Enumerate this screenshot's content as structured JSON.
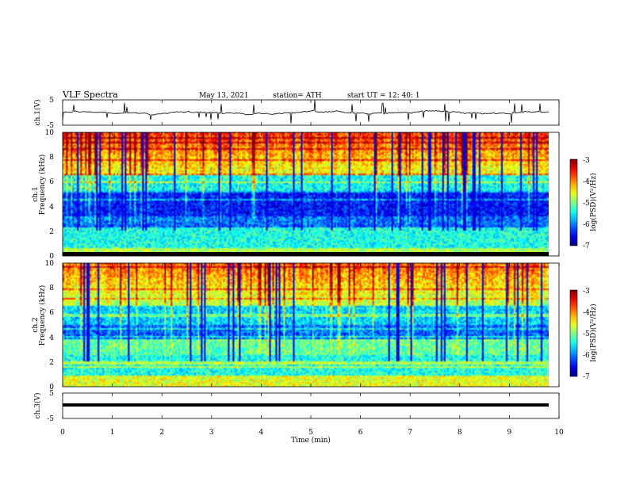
{
  "header": {
    "title": "VLF  Spectra",
    "date": "May 13, 2021",
    "station": "station= ATH",
    "start": "start  UT  =   12: 40: 1"
  },
  "chart_data": [
    {
      "type": "line",
      "name": "ch1-waveform",
      "ylabel": "ch.1(V)",
      "y_ticks": [
        "5",
        "-5"
      ],
      "ylim": [
        -5,
        5
      ],
      "x_range_min": [
        0,
        9.8
      ],
      "approx_level_V": 0,
      "color": "#000000"
    },
    {
      "type": "heatmap",
      "name": "ch1-spectrogram",
      "ylabel_1": "ch.1",
      "ylabel_2": "Frequency (kHz)",
      "y_ticks": [
        "0",
        "2",
        "4",
        "6",
        "8",
        "10"
      ],
      "ylim_kHz": [
        0,
        10
      ],
      "x_range_min": [
        0,
        9.8
      ],
      "colorbar": {
        "label": "log(PSD)(V²/Hz)",
        "ticks": [
          "-3",
          "-4",
          "-5",
          "-6",
          "-7"
        ],
        "range": [
          -7,
          -3
        ]
      }
    },
    {
      "type": "heatmap",
      "name": "ch2-spectrogram",
      "ylabel_1": "ch.2",
      "ylabel_2": "Frequency (kHz)",
      "y_ticks": [
        "0",
        "2",
        "4",
        "6",
        "8",
        "10"
      ],
      "ylim_kHz": [
        0,
        10
      ],
      "x_range_min": [
        0,
        9.8
      ],
      "colorbar": {
        "label": "log(PSD)(V²/Hz)",
        "ticks": [
          "-3",
          "-4",
          "-5",
          "-6",
          "-7"
        ],
        "range": [
          -7,
          -3
        ]
      }
    },
    {
      "type": "line",
      "name": "ch3-waveform",
      "ylabel": "ch.3(V)",
      "y_ticks": [
        "5",
        "-5"
      ],
      "ylim": [
        -5,
        5
      ],
      "x_range_min": [
        0,
        9.8
      ],
      "approx_level_V": 0,
      "color": "#000000",
      "xlabel": "Time  (min)",
      "x_ticks": [
        "0",
        "1",
        "2",
        "3",
        "4",
        "5",
        "6",
        "7",
        "8",
        "9",
        "10"
      ],
      "xlim": [
        0,
        10
      ]
    }
  ]
}
